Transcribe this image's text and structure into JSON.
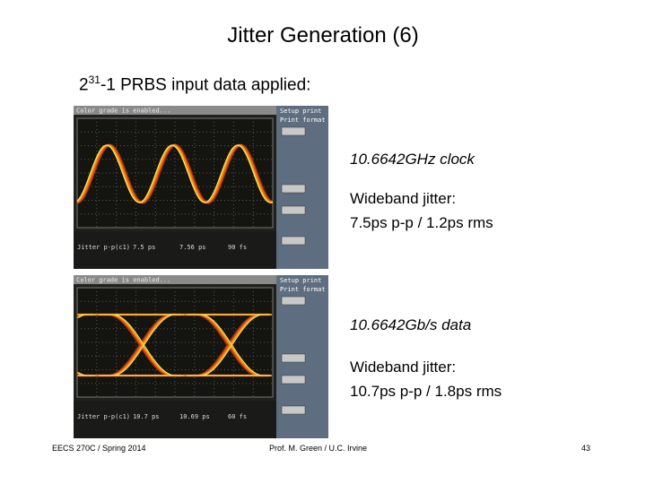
{
  "title": "Jitter Generation (6)",
  "subtitle": {
    "base": "2",
    "exponent": "31",
    "rest": "-1 PRBS input data applied:"
  },
  "panels": [
    {
      "scope": {
        "header": "Color grade is enabled...",
        "menu_title": "Setup print",
        "menu_item": "Print format",
        "readout_label": "Jitter p-p(c1)",
        "current": "7.5 ps",
        "mean": "7.56 ps",
        "std_dev": "90 fs"
      },
      "caption": "10.6642GHz clock",
      "jitter_label": "Wideband jitter:",
      "jitter_values": "7.5ps p-p / 1.2ps rms"
    },
    {
      "scope": {
        "header": "Color grade is enabled...",
        "menu_title": "Setup print",
        "menu_item": "Print format",
        "readout_label": "Jitter p-p(c1)",
        "current": "10.7 ps",
        "mean": "10.69 ps",
        "std_dev": "60 fs"
      },
      "caption": "10.6642Gb/s data",
      "jitter_label": "Wideband jitter:",
      "jitter_values": "10.7ps p-p / 1.8ps rms"
    }
  ],
  "footer": {
    "left": "EECS 270C / Spring 2014",
    "center": "Prof. M. Green / U.C. Irvine",
    "page": "43"
  }
}
